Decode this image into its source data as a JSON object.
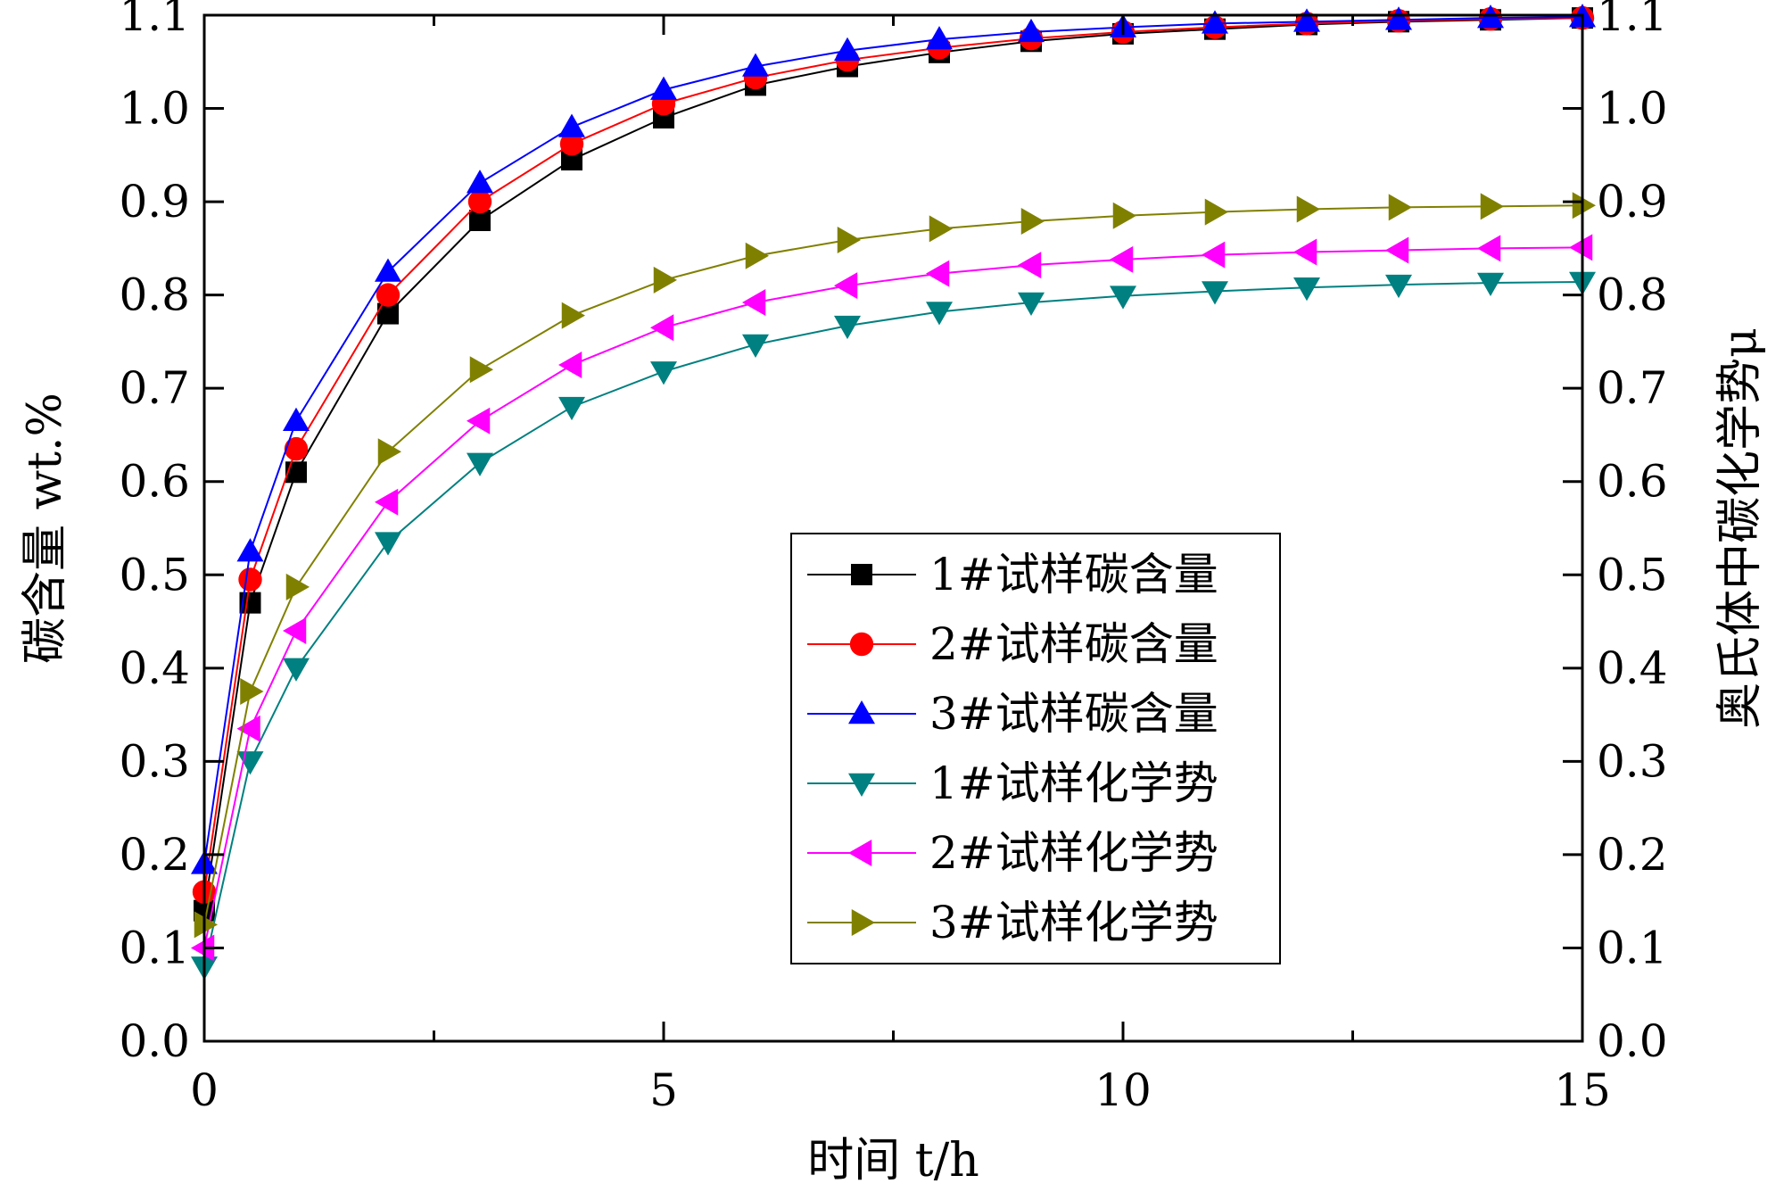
{
  "chart_data": {
    "type": "line",
    "xlabel": "时间 t/h",
    "ylabel": "碳含量 wt.%",
    "y2label": "奥氏体中碳化学势μ",
    "xlim": [
      0,
      15
    ],
    "ylim": [
      0.0,
      1.1
    ],
    "y2lim": [
      0.0,
      1.1
    ],
    "x_ticks": [
      "0",
      "5",
      "10",
      "15"
    ],
    "y_ticks": [
      "0.0",
      "0.1",
      "0.2",
      "0.3",
      "0.4",
      "0.5",
      "0.6",
      "0.7",
      "0.8",
      "0.9",
      "1.0",
      "1.1"
    ],
    "y2_ticks": [
      "0.0",
      "0.1",
      "0.2",
      "0.3",
      "0.4",
      "0.5",
      "0.6",
      "0.7",
      "0.8",
      "0.9",
      "1.0",
      "1.1"
    ],
    "grid": false,
    "legend_position": "center-right",
    "x": [
      0,
      0.5,
      1,
      2,
      3,
      4,
      5,
      6,
      7,
      8,
      9,
      10,
      11,
      12,
      13,
      14,
      15
    ],
    "series": [
      {
        "name": "1#试样碳含量",
        "axis": "left",
        "marker": "square",
        "color": "#000000",
        "values": [
          0.14,
          0.47,
          0.61,
          0.78,
          0.88,
          0.945,
          0.99,
          1.025,
          1.045,
          1.06,
          1.072,
          1.08,
          1.085,
          1.09,
          1.093,
          1.095,
          1.097
        ]
      },
      {
        "name": "2#试样碳含量",
        "axis": "left",
        "marker": "circle",
        "color": "#ff0000",
        "values": [
          0.16,
          0.495,
          0.635,
          0.8,
          0.9,
          0.962,
          1.005,
          1.033,
          1.052,
          1.065,
          1.075,
          1.082,
          1.087,
          1.091,
          1.094,
          1.096,
          1.097
        ]
      },
      {
        "name": "3#试样碳含量",
        "axis": "left",
        "marker": "triangle-up",
        "color": "#0000ff",
        "values": [
          0.19,
          0.525,
          0.665,
          0.825,
          0.92,
          0.98,
          1.02,
          1.045,
          1.062,
          1.074,
          1.082,
          1.087,
          1.091,
          1.093,
          1.095,
          1.097,
          1.098
        ]
      },
      {
        "name": "1#试样化学势",
        "axis": "right",
        "marker": "triangle-down",
        "color": "#008080",
        "values": [
          0.08,
          0.3,
          0.4,
          0.535,
          0.62,
          0.68,
          0.718,
          0.747,
          0.767,
          0.782,
          0.792,
          0.799,
          0.804,
          0.808,
          0.811,
          0.813,
          0.814
        ]
      },
      {
        "name": "2#试样化学势",
        "axis": "right",
        "marker": "triangle-left",
        "color": "#ff00ff",
        "values": [
          0.1,
          0.335,
          0.44,
          0.578,
          0.665,
          0.725,
          0.765,
          0.792,
          0.81,
          0.823,
          0.832,
          0.838,
          0.843,
          0.846,
          0.848,
          0.85,
          0.851
        ]
      },
      {
        "name": "3#试样化学势",
        "axis": "right",
        "marker": "triangle-right",
        "color": "#808000",
        "values": [
          0.125,
          0.375,
          0.487,
          0.632,
          0.72,
          0.778,
          0.816,
          0.842,
          0.859,
          0.871,
          0.879,
          0.885,
          0.889,
          0.892,
          0.894,
          0.895,
          0.896
        ]
      }
    ]
  }
}
